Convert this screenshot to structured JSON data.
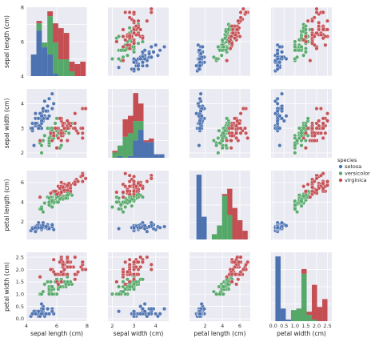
{
  "chart_data": {
    "type": "scatter",
    "subtype": "pairplot",
    "grid": true,
    "background": "#EAEAF2",
    "variables": [
      "sepal length (cm)",
      "sepal width (cm)",
      "petal length (cm)",
      "petal width (cm)"
    ],
    "ranges": [
      [
        4,
        8
      ],
      [
        1.8,
        4.6
      ],
      [
        0.2,
        7.2
      ],
      [
        -0.1,
        2.7
      ]
    ],
    "ticks": [
      [
        4,
        6,
        8
      ],
      [
        2,
        3,
        4
      ],
      [
        2,
        4,
        6
      ],
      [
        0.0,
        0.5,
        1.0,
        1.5,
        2.0,
        2.5
      ]
    ],
    "tick_labels": [
      [
        "4",
        "6",
        "8"
      ],
      [
        "2",
        "3",
        "4"
      ],
      [
        "2",
        "4",
        "6"
      ],
      [
        "0.0",
        "0.5",
        "1.0",
        "1.5",
        "2.0",
        "2.5"
      ]
    ],
    "legend": {
      "title": "species",
      "placement": "right",
      "entries": [
        {
          "name": "setosa",
          "color": "#4C72B0"
        },
        {
          "name": "versicolor",
          "color": "#55A868"
        },
        {
          "name": "virginica",
          "color": "#C44E52"
        }
      ]
    },
    "series": [
      {
        "name": "setosa",
        "color": "#4C72B0",
        "points": [
          [
            5.1,
            3.5,
            1.4,
            0.2
          ],
          [
            4.9,
            3.0,
            1.4,
            0.2
          ],
          [
            4.7,
            3.2,
            1.3,
            0.2
          ],
          [
            4.6,
            3.1,
            1.5,
            0.2
          ],
          [
            5.0,
            3.6,
            1.4,
            0.2
          ],
          [
            5.4,
            3.9,
            1.7,
            0.4
          ],
          [
            4.6,
            3.4,
            1.4,
            0.3
          ],
          [
            5.0,
            3.4,
            1.5,
            0.2
          ],
          [
            4.4,
            2.9,
            1.4,
            0.2
          ],
          [
            4.9,
            3.1,
            1.5,
            0.1
          ],
          [
            5.4,
            3.7,
            1.5,
            0.2
          ],
          [
            4.8,
            3.4,
            1.6,
            0.2
          ],
          [
            4.8,
            3.0,
            1.4,
            0.1
          ],
          [
            4.3,
            3.0,
            1.1,
            0.1
          ],
          [
            5.8,
            4.0,
            1.2,
            0.2
          ],
          [
            5.7,
            4.4,
            1.5,
            0.4
          ],
          [
            5.4,
            3.9,
            1.3,
            0.4
          ],
          [
            5.1,
            3.5,
            1.4,
            0.3
          ],
          [
            5.7,
            3.8,
            1.7,
            0.3
          ],
          [
            5.1,
            3.8,
            1.5,
            0.3
          ],
          [
            5.4,
            3.4,
            1.7,
            0.2
          ],
          [
            5.1,
            3.7,
            1.5,
            0.4
          ],
          [
            4.6,
            3.6,
            1.0,
            0.2
          ],
          [
            5.1,
            3.3,
            1.7,
            0.5
          ],
          [
            4.8,
            3.4,
            1.9,
            0.2
          ],
          [
            5.0,
            3.0,
            1.6,
            0.2
          ],
          [
            5.0,
            3.4,
            1.6,
            0.4
          ],
          [
            5.2,
            3.5,
            1.5,
            0.2
          ],
          [
            5.2,
            3.4,
            1.4,
            0.2
          ],
          [
            4.7,
            3.2,
            1.6,
            0.2
          ],
          [
            4.8,
            3.1,
            1.6,
            0.2
          ],
          [
            5.4,
            3.4,
            1.5,
            0.4
          ],
          [
            5.2,
            4.1,
            1.5,
            0.1
          ],
          [
            5.5,
            4.2,
            1.4,
            0.2
          ],
          [
            4.9,
            3.1,
            1.5,
            0.2
          ],
          [
            5.0,
            3.2,
            1.2,
            0.2
          ],
          [
            5.5,
            3.5,
            1.3,
            0.2
          ],
          [
            4.9,
            3.6,
            1.4,
            0.1
          ],
          [
            4.4,
            3.0,
            1.3,
            0.2
          ],
          [
            5.1,
            3.4,
            1.5,
            0.2
          ],
          [
            5.0,
            3.5,
            1.3,
            0.3
          ],
          [
            4.5,
            2.3,
            1.3,
            0.3
          ],
          [
            4.4,
            3.2,
            1.3,
            0.2
          ],
          [
            5.0,
            3.5,
            1.6,
            0.6
          ],
          [
            5.1,
            3.8,
            1.9,
            0.4
          ],
          [
            4.8,
            3.0,
            1.4,
            0.3
          ],
          [
            5.1,
            3.8,
            1.6,
            0.2
          ],
          [
            4.6,
            3.2,
            1.4,
            0.2
          ],
          [
            5.3,
            3.7,
            1.5,
            0.2
          ],
          [
            5.0,
            3.3,
            1.4,
            0.2
          ]
        ]
      },
      {
        "name": "versicolor",
        "color": "#55A868",
        "points": [
          [
            7.0,
            3.2,
            4.7,
            1.4
          ],
          [
            6.4,
            3.2,
            4.5,
            1.5
          ],
          [
            6.9,
            3.1,
            4.9,
            1.5
          ],
          [
            5.5,
            2.3,
            4.0,
            1.3
          ],
          [
            6.5,
            2.8,
            4.6,
            1.5
          ],
          [
            5.7,
            2.8,
            4.5,
            1.3
          ],
          [
            6.3,
            3.3,
            4.7,
            1.6
          ],
          [
            4.9,
            2.4,
            3.3,
            1.0
          ],
          [
            6.6,
            2.9,
            4.6,
            1.3
          ],
          [
            5.2,
            2.7,
            3.9,
            1.4
          ],
          [
            5.0,
            2.0,
            3.5,
            1.0
          ],
          [
            5.9,
            3.0,
            4.2,
            1.5
          ],
          [
            6.0,
            2.2,
            4.0,
            1.0
          ],
          [
            6.1,
            2.9,
            4.7,
            1.4
          ],
          [
            5.6,
            2.9,
            3.6,
            1.3
          ],
          [
            6.7,
            3.1,
            4.4,
            1.4
          ],
          [
            5.6,
            3.0,
            4.5,
            1.5
          ],
          [
            5.8,
            2.7,
            4.1,
            1.0
          ],
          [
            6.2,
            2.2,
            4.5,
            1.5
          ],
          [
            5.6,
            2.5,
            3.9,
            1.1
          ],
          [
            5.9,
            3.2,
            4.8,
            1.8
          ],
          [
            6.1,
            2.8,
            4.0,
            1.3
          ],
          [
            6.3,
            2.5,
            4.9,
            1.5
          ],
          [
            6.1,
            2.8,
            4.7,
            1.2
          ],
          [
            6.4,
            2.9,
            4.3,
            1.3
          ],
          [
            6.6,
            3.0,
            4.4,
            1.4
          ],
          [
            6.8,
            2.8,
            4.8,
            1.4
          ],
          [
            6.7,
            3.0,
            5.0,
            1.7
          ],
          [
            6.0,
            2.9,
            4.5,
            1.5
          ],
          [
            5.7,
            2.6,
            3.5,
            1.0
          ],
          [
            5.5,
            2.4,
            3.8,
            1.1
          ],
          [
            5.5,
            2.4,
            3.7,
            1.0
          ],
          [
            5.8,
            2.7,
            3.9,
            1.2
          ],
          [
            6.0,
            2.7,
            5.1,
            1.6
          ],
          [
            5.4,
            3.0,
            4.5,
            1.5
          ],
          [
            6.0,
            3.4,
            4.5,
            1.6
          ],
          [
            6.7,
            3.1,
            4.7,
            1.5
          ],
          [
            6.3,
            2.3,
            4.4,
            1.3
          ],
          [
            5.6,
            3.0,
            4.1,
            1.3
          ],
          [
            5.5,
            2.5,
            4.0,
            1.3
          ],
          [
            5.5,
            2.6,
            4.4,
            1.2
          ],
          [
            6.1,
            3.0,
            4.6,
            1.4
          ],
          [
            5.8,
            2.6,
            4.0,
            1.2
          ],
          [
            5.0,
            2.3,
            3.3,
            1.0
          ],
          [
            5.6,
            2.7,
            4.2,
            1.3
          ],
          [
            5.7,
            3.0,
            4.2,
            1.2
          ],
          [
            5.7,
            2.9,
            4.2,
            1.3
          ],
          [
            6.2,
            2.9,
            4.3,
            1.3
          ],
          [
            5.1,
            2.5,
            3.0,
            1.1
          ],
          [
            5.7,
            2.8,
            4.1,
            1.3
          ]
        ]
      },
      {
        "name": "virginica",
        "color": "#C44E52",
        "points": [
          [
            6.3,
            3.3,
            6.0,
            2.5
          ],
          [
            5.8,
            2.7,
            5.1,
            1.9
          ],
          [
            7.1,
            3.0,
            5.9,
            2.1
          ],
          [
            6.3,
            2.9,
            5.6,
            1.8
          ],
          [
            6.5,
            3.0,
            5.8,
            2.2
          ],
          [
            7.6,
            3.0,
            6.6,
            2.1
          ],
          [
            4.9,
            2.5,
            4.5,
            1.7
          ],
          [
            7.3,
            2.9,
            6.3,
            1.8
          ],
          [
            6.7,
            2.5,
            5.8,
            1.8
          ],
          [
            7.2,
            3.6,
            6.1,
            2.5
          ],
          [
            6.5,
            3.2,
            5.1,
            2.0
          ],
          [
            6.4,
            2.7,
            5.3,
            1.9
          ],
          [
            6.8,
            3.0,
            5.5,
            2.1
          ],
          [
            5.7,
            2.5,
            5.0,
            2.0
          ],
          [
            5.8,
            2.8,
            5.1,
            2.4
          ],
          [
            6.4,
            3.2,
            5.3,
            2.3
          ],
          [
            6.5,
            3.0,
            5.5,
            1.8
          ],
          [
            7.7,
            3.8,
            6.7,
            2.2
          ],
          [
            7.7,
            2.6,
            6.9,
            2.3
          ],
          [
            6.0,
            2.2,
            5.0,
            1.5
          ],
          [
            6.9,
            3.2,
            5.7,
            2.3
          ],
          [
            5.6,
            2.8,
            4.9,
            2.0
          ],
          [
            7.7,
            2.8,
            6.7,
            2.0
          ],
          [
            6.3,
            2.7,
            4.9,
            1.8
          ],
          [
            6.7,
            3.3,
            5.7,
            2.1
          ],
          [
            7.2,
            3.2,
            6.0,
            1.8
          ],
          [
            6.2,
            2.8,
            4.8,
            1.8
          ],
          [
            6.1,
            3.0,
            4.9,
            1.8
          ],
          [
            6.4,
            2.8,
            5.6,
            2.1
          ],
          [
            7.2,
            3.0,
            5.8,
            1.6
          ],
          [
            7.4,
            2.8,
            6.1,
            1.9
          ],
          [
            7.9,
            3.8,
            6.4,
            2.0
          ],
          [
            6.4,
            2.8,
            5.6,
            2.2
          ],
          [
            6.3,
            2.8,
            5.1,
            1.5
          ],
          [
            6.1,
            2.6,
            5.6,
            1.4
          ],
          [
            7.7,
            3.0,
            6.1,
            2.3
          ],
          [
            6.3,
            3.4,
            5.6,
            2.4
          ],
          [
            6.4,
            3.1,
            5.5,
            1.8
          ],
          [
            6.0,
            3.0,
            4.8,
            1.8
          ],
          [
            6.9,
            3.1,
            5.4,
            2.1
          ],
          [
            6.7,
            3.1,
            5.6,
            2.4
          ],
          [
            6.9,
            3.1,
            5.1,
            2.3
          ],
          [
            5.8,
            2.7,
            5.1,
            1.9
          ],
          [
            6.8,
            3.2,
            5.9,
            2.3
          ],
          [
            6.7,
            3.3,
            5.7,
            2.5
          ],
          [
            6.7,
            3.0,
            5.2,
            2.3
          ],
          [
            6.3,
            2.5,
            5.0,
            1.9
          ],
          [
            6.5,
            3.0,
            5.2,
            2.0
          ],
          [
            6.2,
            3.4,
            5.4,
            2.3
          ],
          [
            5.9,
            3.0,
            5.1,
            1.8
          ]
        ]
      }
    ]
  }
}
